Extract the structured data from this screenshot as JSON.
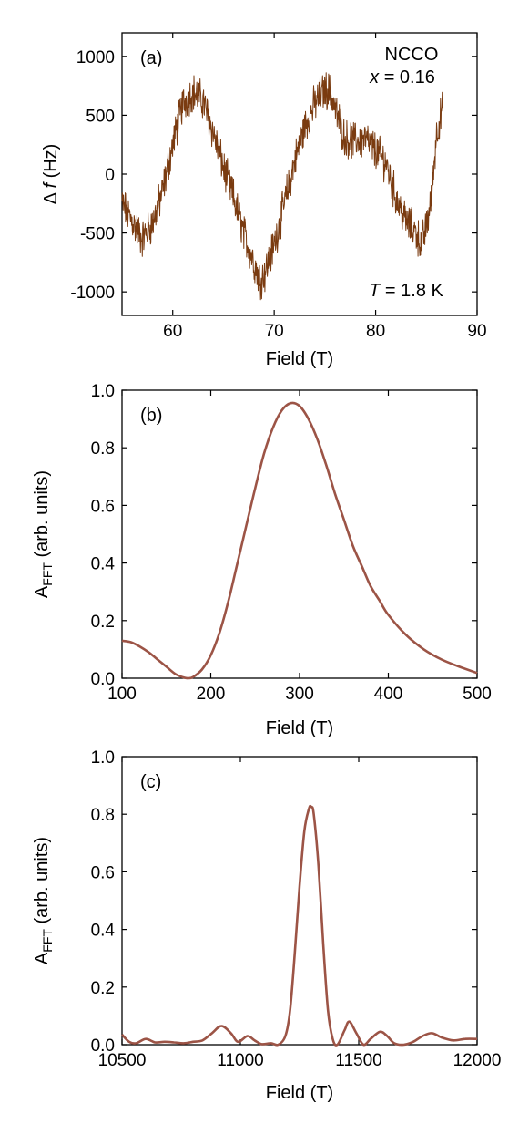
{
  "chart_data": [
    {
      "panel": "a",
      "type": "line",
      "panel_label": "(a)",
      "xlabel": "Field (T)",
      "ylabel_parts": [
        "Δ ",
        "f",
        " (Hz)"
      ],
      "xlim": [
        55,
        90
      ],
      "ylim": [
        -1200,
        1200
      ],
      "xticks": [
        60,
        70,
        80,
        90
      ],
      "yticks": [
        -1000,
        -500,
        0,
        500,
        1000
      ],
      "annotations": {
        "material": "NCCO",
        "doping_symbol": "x",
        "doping_value": " = 0.16",
        "temp_symbol": "T",
        "temp_value": " = 1.8 K"
      },
      "color": "#7a3b10",
      "series": [
        {
          "x": [
            55,
            56,
            57,
            58,
            59,
            60,
            61,
            62,
            63,
            64,
            65,
            66,
            67,
            68,
            68.6,
            69,
            70,
            71,
            72,
            73,
            74,
            75,
            75.5,
            76,
            77,
            78,
            79,
            80,
            81,
            82,
            83,
            84,
            84.5,
            85,
            85.5,
            86,
            86.6
          ],
          "y": [
            -250,
            -400,
            -550,
            -420,
            -150,
            250,
            600,
            700,
            620,
            350,
            50,
            -200,
            -500,
            -750,
            -900,
            -850,
            -600,
            -250,
            100,
            400,
            600,
            720,
            700,
            550,
            300,
            280,
            300,
            200,
            100,
            -200,
            -400,
            -500,
            -600,
            -450,
            -200,
            350,
            550
          ]
        }
      ]
    },
    {
      "panel": "b",
      "type": "line",
      "panel_label": "(b)",
      "xlabel": "Field (T)",
      "ylabel_main": "A",
      "ylabel_sub": "FFT",
      "ylabel_rest": " (arb. units)",
      "xlim": [
        100,
        500
      ],
      "ylim": [
        0,
        1.0
      ],
      "xticks": [
        100,
        200,
        300,
        400,
        500
      ],
      "yticks": [
        0.0,
        0.2,
        0.4,
        0.6,
        0.8,
        1.0
      ],
      "ytick_labels": [
        "0.0",
        "0.2",
        "0.4",
        "0.6",
        "0.8",
        "1.0"
      ],
      "color": "#9c5446",
      "series": [
        {
          "x": [
            100,
            110,
            120,
            130,
            140,
            150,
            160,
            170,
            175,
            180,
            190,
            200,
            210,
            220,
            230,
            240,
            250,
            260,
            270,
            280,
            290,
            300,
            310,
            320,
            330,
            340,
            350,
            360,
            370,
            380,
            390,
            400,
            420,
            440,
            460,
            480,
            500
          ],
          "y": [
            0.13,
            0.125,
            0.11,
            0.09,
            0.065,
            0.04,
            0.015,
            0.002,
            0.0,
            0.004,
            0.03,
            0.08,
            0.16,
            0.27,
            0.4,
            0.53,
            0.66,
            0.78,
            0.87,
            0.93,
            0.955,
            0.945,
            0.9,
            0.83,
            0.74,
            0.64,
            0.55,
            0.46,
            0.39,
            0.32,
            0.27,
            0.22,
            0.15,
            0.1,
            0.065,
            0.04,
            0.018
          ]
        }
      ]
    },
    {
      "panel": "c",
      "type": "line",
      "panel_label": "(c)",
      "xlabel": "Field (T)",
      "ylabel_main": "A",
      "ylabel_sub": "FFT",
      "ylabel_rest": " (arb. units)",
      "xlim": [
        10500,
        12000
      ],
      "ylim": [
        0,
        1.0
      ],
      "xticks": [
        10500,
        11000,
        11500,
        12000
      ],
      "yticks": [
        0.0,
        0.2,
        0.4,
        0.6,
        0.8,
        1.0
      ],
      "ytick_labels": [
        "0.0",
        "0.2",
        "0.4",
        "0.6",
        "0.8",
        "1.0"
      ],
      "color": "#9c5446",
      "series": [
        {
          "x": [
            10500,
            10530,
            10560,
            10600,
            10640,
            10680,
            10720,
            10760,
            10800,
            10840,
            10880,
            10920,
            10960,
            10990,
            11030,
            11060,
            11090,
            11130,
            11160,
            11190,
            11210,
            11230,
            11250,
            11270,
            11290,
            11300,
            11310,
            11330,
            11350,
            11370,
            11390,
            11410,
            11440,
            11460,
            11490,
            11520,
            11550,
            11590,
            11620,
            11650,
            11690,
            11730,
            11770,
            11810,
            11850,
            11900,
            11950,
            12000
          ],
          "y": [
            0.035,
            0.01,
            0.005,
            0.02,
            0.008,
            0.01,
            0.008,
            0.005,
            0.01,
            0.015,
            0.04,
            0.065,
            0.04,
            0.01,
            0.03,
            0.015,
            0.002,
            0.005,
            0.0,
            0.03,
            0.12,
            0.32,
            0.55,
            0.74,
            0.82,
            0.825,
            0.8,
            0.62,
            0.35,
            0.12,
            0.02,
            0.0,
            0.05,
            0.08,
            0.04,
            0.0,
            0.02,
            0.045,
            0.03,
            0.005,
            0.0,
            0.01,
            0.03,
            0.04,
            0.025,
            0.015,
            0.02,
            0.02
          ]
        }
      ]
    }
  ]
}
